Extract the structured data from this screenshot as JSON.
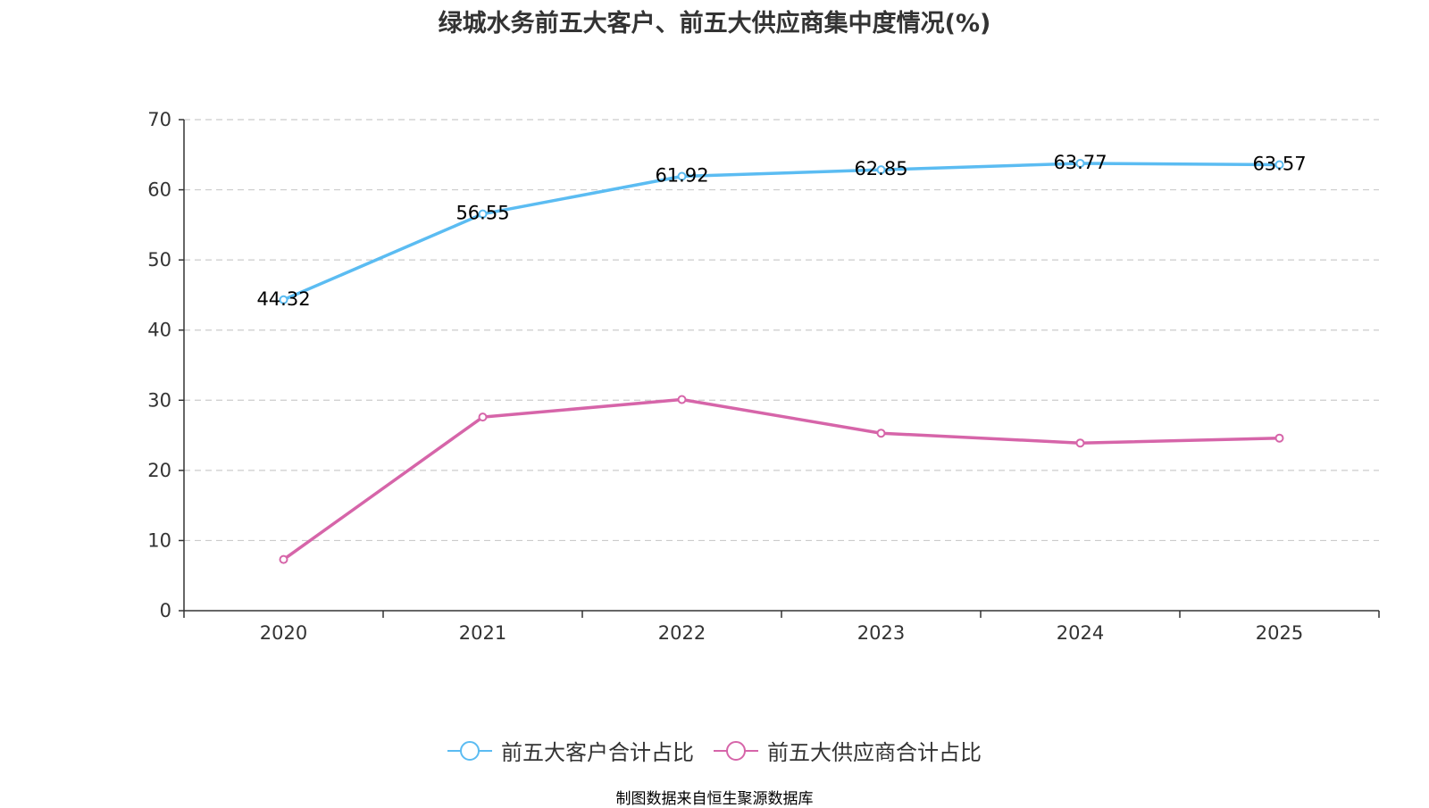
{
  "colors": {
    "series_customers": "#5bbcf2",
    "series_suppliers": "#d665a9",
    "grid": "#cccccc",
    "axis": "#333333",
    "source_text": "#c4953a"
  },
  "chart_data": {
    "type": "line",
    "title": "绿城水务前五大客户、前五大供应商集中度情况(%)",
    "xlabel": "",
    "ylabel": "",
    "categories": [
      "2020",
      "2021",
      "2022",
      "2023",
      "2024",
      "2025"
    ],
    "ylim": [
      0,
      70
    ],
    "yticks": [
      0,
      10,
      20,
      30,
      40,
      50,
      60,
      70
    ],
    "grid": true,
    "legend_position": "bottom",
    "series": [
      {
        "name": "前五大客户合计占比",
        "values": [
          44.32,
          56.55,
          61.92,
          62.85,
          63.77,
          63.57
        ],
        "labels": [
          "44.32",
          "56.55",
          "61.92",
          "62.85",
          "63.77",
          "63.57"
        ],
        "color": "#5bbcf2"
      },
      {
        "name": "前五大供应商合计占比",
        "values": [
          7.3,
          27.6,
          30.1,
          25.3,
          23.9,
          24.6
        ],
        "labels": [],
        "color": "#d665a9"
      }
    ]
  },
  "source": "制图数据来自恒生聚源数据库"
}
